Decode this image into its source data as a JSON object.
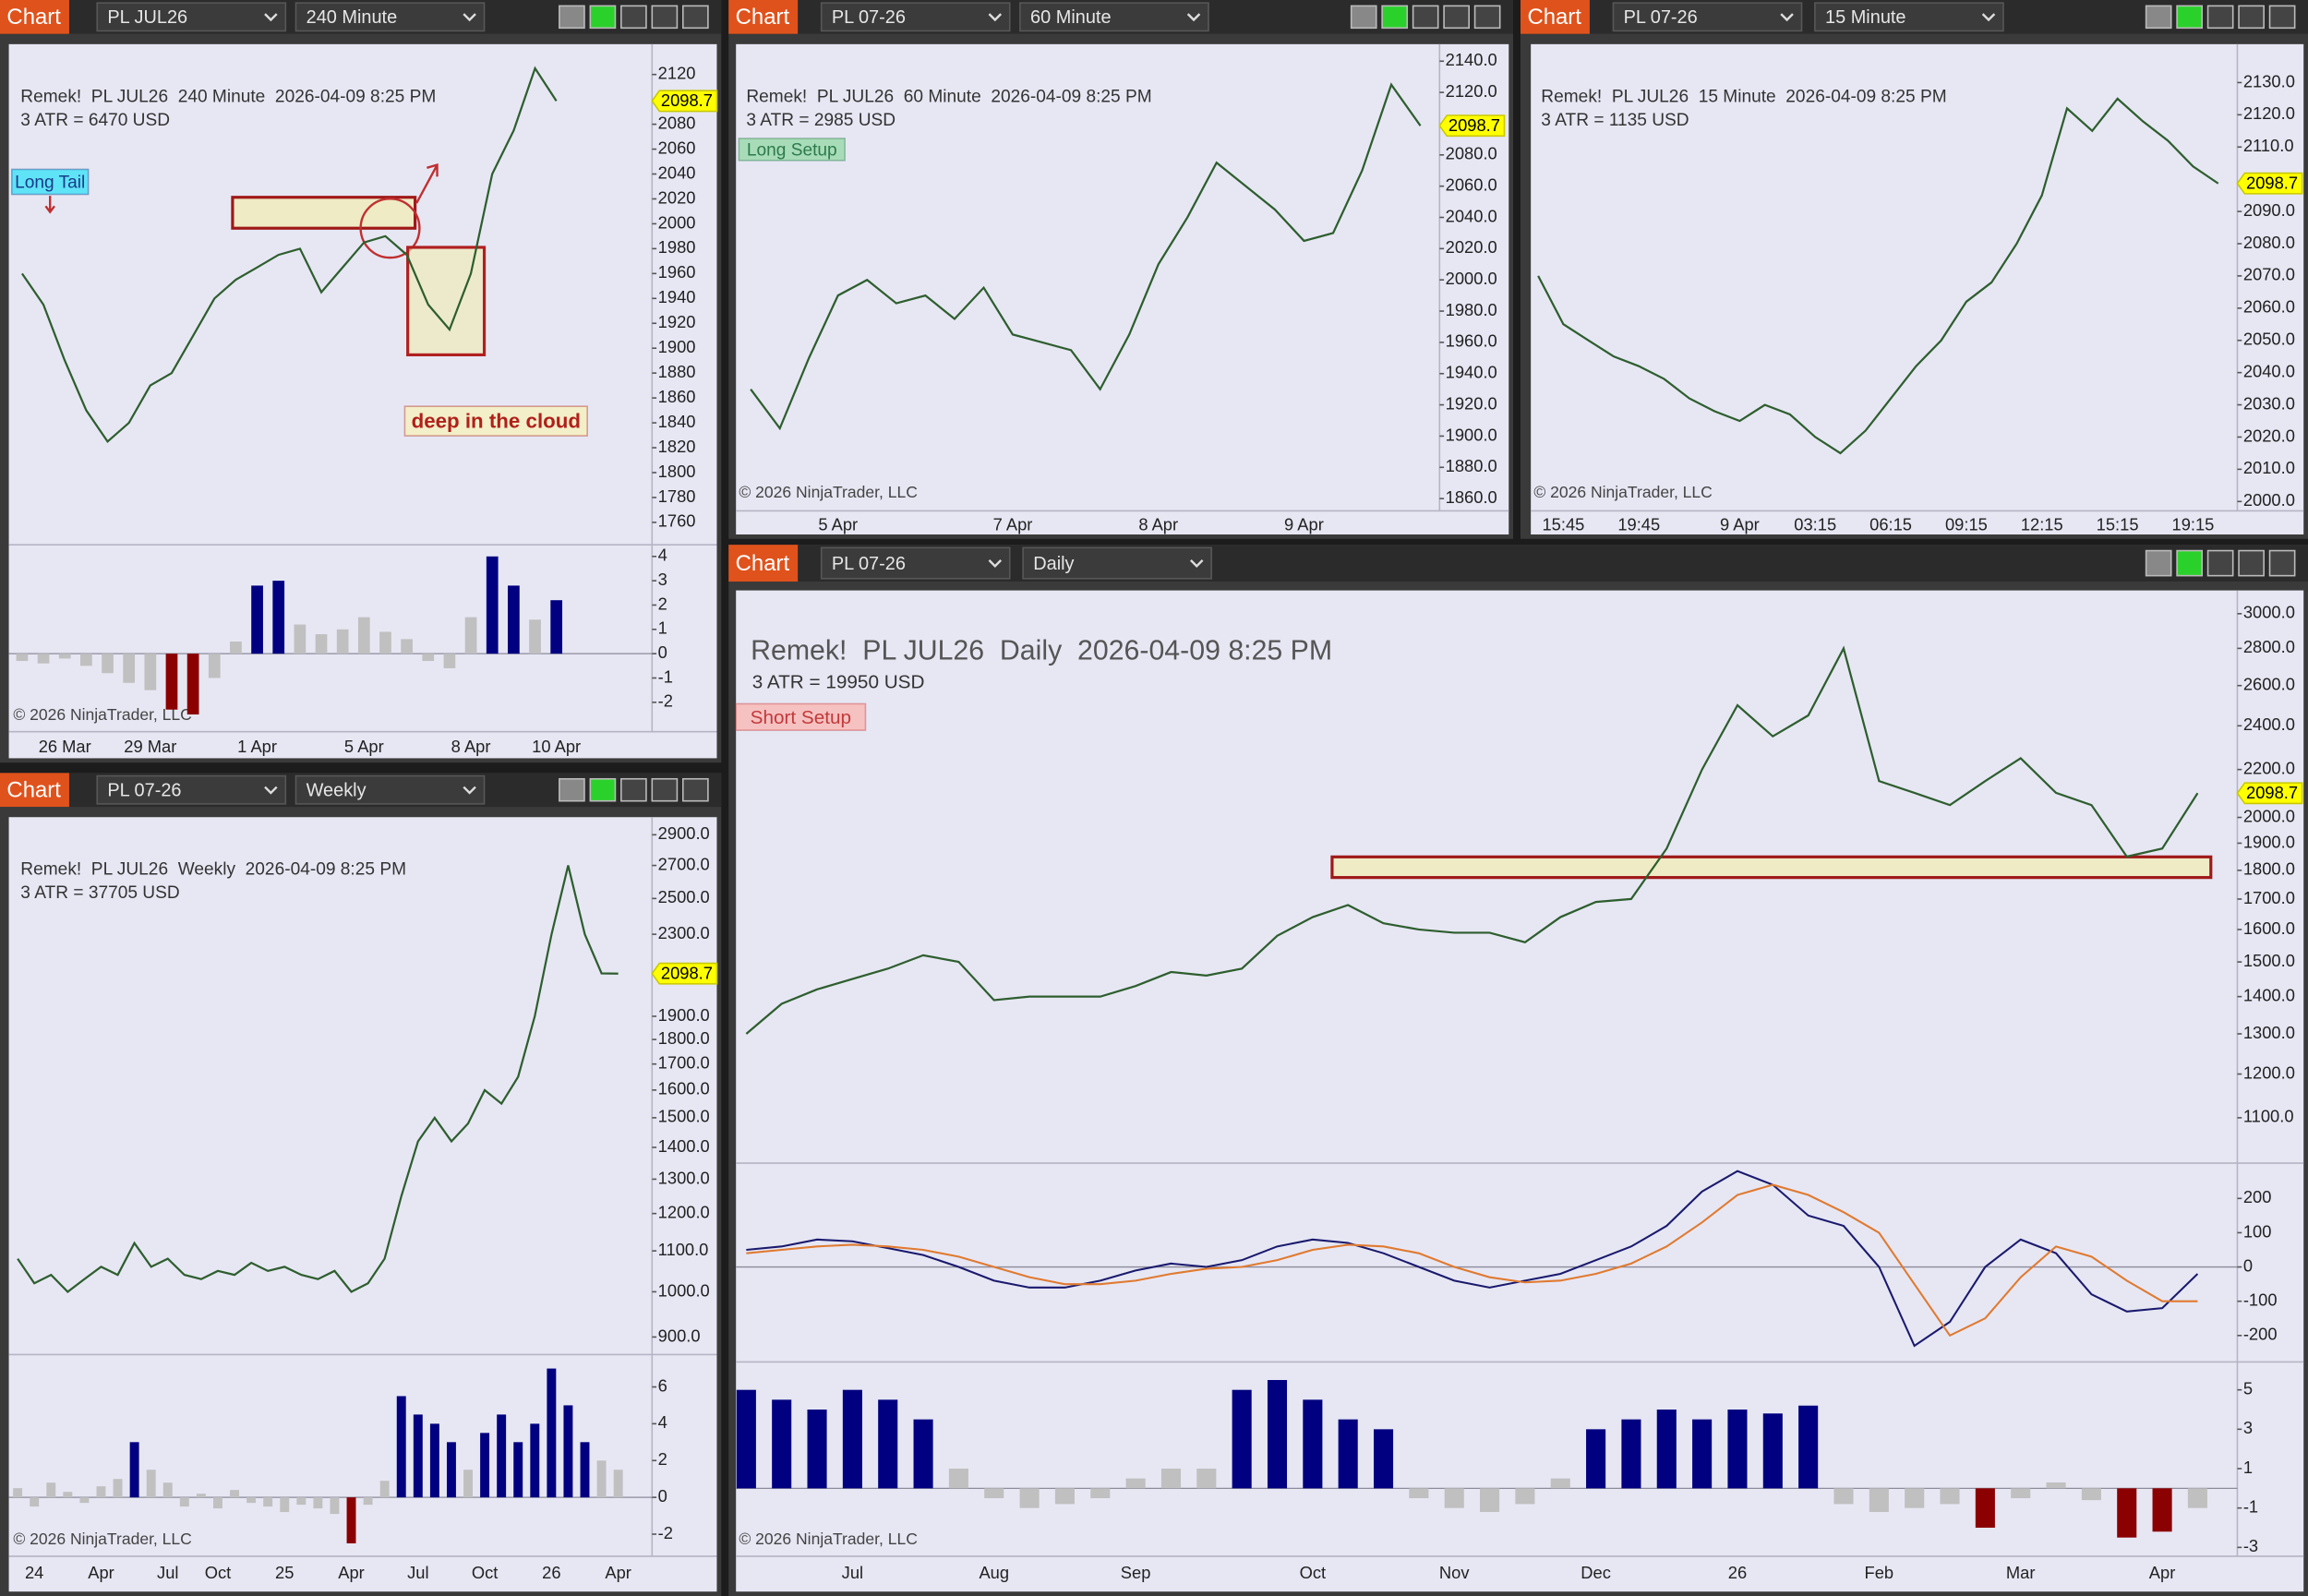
{
  "chart_data": [
    {
      "type": "line",
      "window_label": "Chart",
      "instrument": "PL JUL26",
      "timeframe": "240 Minute",
      "title": "Remek!  PL JUL26  240 Minute  2026-04-09 8:25 PM",
      "subtitle": "3 ATR = 6470 USD",
      "copyright": "© 2026 NinjaTrader, LLC",
      "annotations": [
        "Long Tail",
        "deep in the cloud"
      ],
      "categories": [
        null,
        null,
        "26 Mar",
        null,
        null,
        null,
        "29 Mar",
        null,
        null,
        null,
        null,
        "1 Apr",
        null,
        null,
        null,
        null,
        "5 Apr",
        null,
        null,
        null,
        null,
        "8 Apr",
        null,
        null,
        null,
        "10 Apr"
      ],
      "values": [
        1960,
        1935,
        1890,
        1850,
        1825,
        1840,
        1870,
        1880,
        1910,
        1940,
        1955,
        1965,
        1975,
        1980,
        1945,
        1965,
        1985,
        1990,
        1975,
        1935,
        1915,
        1960,
        2040,
        2075,
        2125,
        2098.7
      ],
      "color": "#2e5e2e",
      "ylim": [
        1742,
        2142
      ],
      "yticks": [
        1760,
        1780,
        1800,
        1820,
        1840,
        1860,
        1880,
        1900,
        1920,
        1940,
        1960,
        1980,
        2000,
        2020,
        2040,
        2060,
        2080,
        2120
      ],
      "lower_panels": [
        {
          "type": "bar",
          "values": [
            -0.3,
            -0.4,
            -0.2,
            -0.5,
            -0.8,
            -1.2,
            -1.5,
            -2.3,
            -2.5,
            -1.0,
            0.5,
            2.8,
            3.0,
            1.2,
            0.8,
            1.0,
            1.5,
            0.9,
            0.6,
            -0.3,
            -0.6,
            1.5,
            4.0,
            2.8,
            1.4,
            2.2
          ],
          "colors": [
            "silver",
            "silver",
            "silver",
            "silver",
            "silver",
            "silver",
            "silver",
            "darkred",
            "darkred",
            "silver",
            "silver",
            "navy",
            "navy",
            "silver",
            "silver",
            "silver",
            "silver",
            "silver",
            "silver",
            "silver",
            "silver",
            "silver",
            "navy",
            "navy",
            "silver",
            "navy"
          ],
          "ylim": [
            -3.09,
            4.48
          ],
          "yticks": [
            4,
            3,
            2,
            1,
            0,
            -1,
            -2
          ]
        }
      ]
    },
    {
      "type": "line",
      "window_label": "Chart",
      "instrument": "PL 07-26",
      "timeframe": "60 Minute",
      "title": "Remek!  PL JUL26  60 Minute  2026-04-09 8:25 PM",
      "subtitle": "3 ATR = 2985 USD",
      "copyright": "© 2026 NinjaTrader, LLC",
      "annotations": [
        "Long Setup"
      ],
      "categories": [
        null,
        null,
        null,
        "5 Apr",
        null,
        null,
        null,
        null,
        null,
        "7 Apr",
        null,
        null,
        null,
        null,
        "8 Apr",
        null,
        null,
        null,
        null,
        "9 Apr",
        null,
        null,
        null,
        null
      ],
      "values": [
        1930,
        1905,
        1950,
        1990,
        2000,
        1985,
        1990,
        1975,
        1995,
        1965,
        1960,
        1955,
        1930,
        1965,
        2010,
        2040,
        2075,
        2060,
        2045,
        2025,
        2030,
        2070,
        2125,
        2098.7
      ],
      "color": "#2e5e2e",
      "ylim": [
        1854,
        2149
      ],
      "yticks": [
        {
          "value": 2140,
          "label": "2140.0"
        },
        {
          "value": 2120,
          "label": "2120.0"
        },
        {
          "value": 2080,
          "label": "2080.0"
        },
        {
          "value": 2060,
          "label": "2060.0"
        },
        {
          "value": 2040,
          "label": "2040.0"
        },
        {
          "value": 2020,
          "label": "2020.0"
        },
        {
          "value": 2000,
          "label": "2000.0"
        },
        {
          "value": 1980,
          "label": "1980.0"
        },
        {
          "value": 1960,
          "label": "1960.0"
        },
        {
          "value": 1940,
          "label": "1940.0"
        },
        {
          "value": 1920,
          "label": "1920.0"
        },
        {
          "value": 1900,
          "label": "1900.0"
        },
        {
          "value": 1880,
          "label": "1880.0"
        },
        {
          "value": 1860,
          "label": "1860.0"
        }
      ]
    },
    {
      "type": "line",
      "window_label": "Chart",
      "instrument": "PL 07-26",
      "timeframe": "15 Minute",
      "title": "Remek!  PL JUL26  15 Minute  2026-04-09 8:25 PM",
      "subtitle": "3 ATR = 1135 USD",
      "copyright": "© 2026 NinjaTrader, LLC",
      "categories": [
        null,
        "15:45",
        null,
        null,
        "19:45",
        null,
        null,
        null,
        "9 Apr",
        null,
        null,
        "03:15",
        null,
        null,
        "06:15",
        null,
        null,
        "09:15",
        null,
        null,
        "12:15",
        null,
        null,
        "15:15",
        null,
        null,
        "19:15",
        null
      ],
      "values": [
        2070,
        2055,
        2050,
        2045,
        2042,
        2038,
        2032,
        2028,
        2025,
        2030,
        2027,
        2020,
        2015,
        2022,
        2032,
        2042,
        2050,
        2062,
        2068,
        2080,
        2095,
        2122,
        2115,
        2125,
        2118,
        2112,
        2104,
        2098.7
      ],
      "color": "#2e5e2e",
      "ylim": [
        1998,
        2141
      ],
      "yticks": [
        {
          "value": 2130,
          "label": "2130.0"
        },
        {
          "value": 2120,
          "label": "2120.0"
        },
        {
          "value": 2110,
          "label": "2110.0"
        },
        {
          "value": 2090,
          "label": "2090.0"
        },
        {
          "value": 2080,
          "label": "2080.0"
        },
        {
          "value": 2070,
          "label": "2070.0"
        },
        {
          "value": 2060,
          "label": "2060.0"
        },
        {
          "value": 2050,
          "label": "2050.0"
        },
        {
          "value": 2040,
          "label": "2040.0"
        },
        {
          "value": 2030,
          "label": "2030.0"
        },
        {
          "value": 2020,
          "label": "2020.0"
        },
        {
          "value": 2010,
          "label": "2010.0"
        },
        {
          "value": 2000,
          "label": "2000.0"
        }
      ]
    },
    {
      "type": "line",
      "window_label": "Chart",
      "instrument": "PL 07-26",
      "timeframe": "Weekly",
      "title": "Remek!  PL JUL26  Weekly  2026-04-09 8:25 PM",
      "subtitle": "3 ATR = 37705 USD",
      "copyright": "© 2026 NinjaTrader, LLC",
      "categories": [
        null,
        "24",
        null,
        null,
        null,
        "Apr",
        null,
        null,
        null,
        "Jul",
        null,
        null,
        "Oct",
        null,
        null,
        null,
        "25",
        null,
        null,
        null,
        "Apr",
        null,
        null,
        null,
        "Jul",
        null,
        null,
        null,
        "Oct",
        null,
        null,
        null,
        "26",
        null,
        null,
        null,
        "Apr"
      ],
      "values": [
        1080,
        1020,
        1040,
        1000,
        1030,
        1060,
        1040,
        1120,
        1060,
        1080,
        1040,
        1030,
        1050,
        1040,
        1070,
        1050,
        1060,
        1040,
        1030,
        1050,
        1000,
        1020,
        1080,
        1250,
        1420,
        1500,
        1420,
        1480,
        1600,
        1550,
        1650,
        1900,
        2300,
        2700,
        2300,
        2100,
        2098.7
      ],
      "color": "#2e5e2e",
      "log_scale": true,
      "ylim": [
        864,
        3001
      ],
      "yticks": [
        {
          "value": 2900,
          "label": "2900.0"
        },
        {
          "value": 2700,
          "label": "2700.0"
        },
        {
          "value": 2500,
          "label": "2500.0"
        },
        {
          "value": 2300,
          "label": "2300.0"
        },
        {
          "value": 1900,
          "label": "1900.0"
        },
        {
          "value": 1800,
          "label": "1800.0"
        },
        {
          "value": 1700,
          "label": "1700.0"
        },
        {
          "value": 1600,
          "label": "1600.0"
        },
        {
          "value": 1500,
          "label": "1500.0"
        },
        {
          "value": 1400,
          "label": "1400.0"
        },
        {
          "value": 1300,
          "label": "1300.0"
        },
        {
          "value": 1200,
          "label": "1200.0"
        },
        {
          "value": 1100,
          "label": "1100.0"
        },
        {
          "value": 1000,
          "label": "1000.0"
        },
        {
          "value": 900,
          "label": "900.0"
        }
      ],
      "lower_panels": [
        {
          "type": "bar",
          "values": [
            0.5,
            -0.5,
            0.8,
            0.3,
            -0.3,
            0.6,
            1.0,
            3.0,
            1.5,
            0.8,
            -0.5,
            0.2,
            -0.6,
            0.4,
            -0.3,
            -0.5,
            -0.8,
            -0.4,
            -0.6,
            -0.9,
            -2.5,
            -0.4,
            0.9,
            5.5,
            4.5,
            4.0,
            3.0,
            1.5,
            3.5,
            4.5,
            3.0,
            4.0,
            7.0,
            5.0,
            3.0,
            2.0,
            1.5
          ],
          "colors": [
            "silver",
            "silver",
            "silver",
            "silver",
            "silver",
            "silver",
            "silver",
            "navy",
            "silver",
            "silver",
            "silver",
            "silver",
            "silver",
            "silver",
            "silver",
            "silver",
            "silver",
            "silver",
            "silver",
            "silver",
            "darkred",
            "silver",
            "silver",
            "navy",
            "navy",
            "navy",
            "navy",
            "silver",
            "navy",
            "navy",
            "navy",
            "navy",
            "navy",
            "navy",
            "navy",
            "silver",
            "silver"
          ],
          "ylim": [
            -3.04,
            7.76
          ],
          "yticks": [
            6,
            4,
            2,
            0,
            -2
          ]
        }
      ]
    },
    {
      "type": "line",
      "window_label": "Chart",
      "instrument": "PL 07-26",
      "timeframe": "Daily",
      "title": "Remek!  PL JUL26  Daily  2026-04-09 8:25 PM",
      "subtitle": "3 ATR = 19950 USD",
      "copyright": "© 2026 NinjaTrader, LLC",
      "annotations": [
        "Short Setup"
      ],
      "categories": [
        null,
        null,
        null,
        "Jul",
        null,
        null,
        null,
        "Aug",
        null,
        null,
        null,
        "Sep",
        null,
        null,
        null,
        null,
        "Oct",
        null,
        null,
        null,
        "Nov",
        null,
        null,
        null,
        "Dec",
        null,
        null,
        null,
        "26",
        null,
        null,
        null,
        "Feb",
        null,
        null,
        null,
        "Mar",
        null,
        null,
        null,
        "Apr",
        null
      ],
      "values": [
        1300,
        1380,
        1420,
        1450,
        1480,
        1520,
        1500,
        1390,
        1400,
        1400,
        1400,
        1430,
        1470,
        1460,
        1480,
        1580,
        1640,
        1680,
        1620,
        1600,
        1590,
        1590,
        1560,
        1640,
        1690,
        1700,
        1880,
        2200,
        2500,
        2350,
        2450,
        2800,
        2150,
        2100,
        2050,
        2150,
        2250,
        2100,
        2050,
        1850,
        1880,
        2098.7
      ],
      "color": "#2e5e2e",
      "log_scale": true,
      "ylim": [
        1005,
        3124
      ],
      "yticks": [
        {
          "value": 3000,
          "label": "3000.0"
        },
        {
          "value": 2800,
          "label": "2800.0"
        },
        {
          "value": 2600,
          "label": "2600.0"
        },
        {
          "value": 2400,
          "label": "2400.0"
        },
        {
          "value": 2200,
          "label": "2200.0"
        },
        {
          "value": 2000,
          "label": "2000.0"
        },
        {
          "value": 1900,
          "label": "1900.0"
        },
        {
          "value": 1800,
          "label": "1800.0"
        },
        {
          "value": 1700,
          "label": "1700.0"
        },
        {
          "value": 1600,
          "label": "1600.0"
        },
        {
          "value": 1500,
          "label": "1500.0"
        },
        {
          "value": 1400,
          "label": "1400.0"
        },
        {
          "value": 1300,
          "label": "1300.0"
        },
        {
          "value": 1200,
          "label": "1200.0"
        },
        {
          "value": 1100,
          "label": "1100.0"
        }
      ],
      "lower_panels": [
        {
          "type": "line",
          "ylim": [
            -277,
            303
          ],
          "yticks": [
            200,
            100,
            0,
            -100,
            -200
          ],
          "series": [
            {
              "color": "#1a1a6e",
              "values": [
                50,
                60,
                80,
                75,
                55,
                35,
                0,
                -40,
                -60,
                -60,
                -40,
                -10,
                10,
                0,
                20,
                60,
                80,
                70,
                40,
                0,
                -40,
                -60,
                -40,
                -20,
                20,
                60,
                120,
                220,
                280,
                240,
                150,
                120,
                0,
                -230,
                -160,
                0,
                80,
                40,
                -80,
                -130,
                -120,
                -20
              ]
            },
            {
              "color": "#e07a30",
              "values": [
                40,
                50,
                60,
                65,
                60,
                50,
                30,
                0,
                -30,
                -50,
                -50,
                -40,
                -20,
                -5,
                0,
                20,
                50,
                65,
                60,
                40,
                0,
                -30,
                -45,
                -40,
                -20,
                10,
                60,
                130,
                210,
                240,
                210,
                160,
                100,
                -50,
                -200,
                -150,
                -30,
                60,
                30,
                -40,
                -100,
                -100
              ]
            }
          ]
        },
        {
          "type": "bar",
          "ylim": [
            -3.3,
            6.42
          ],
          "yticks": [
            5,
            3,
            1,
            -1,
            -3
          ],
          "values": [
            5,
            4.5,
            4,
            5,
            4.5,
            3.5,
            1,
            -0.5,
            -1,
            -0.8,
            -0.5,
            0.5,
            1,
            1,
            5,
            5.5,
            4.5,
            3.5,
            3,
            -0.5,
            -1,
            -1.2,
            -0.8,
            0.5,
            3,
            3.5,
            4,
            3.5,
            4,
            3.8,
            4.2,
            -0.8,
            -1.2,
            -1,
            -0.8,
            -2,
            -0.5,
            0.3,
            -0.6,
            -2.5,
            -2.2,
            -1
          ],
          "colors": [
            "navy",
            "navy",
            "navy",
            "navy",
            "navy",
            "navy",
            "silver",
            "silver",
            "silver",
            "silver",
            "silver",
            "silver",
            "silver",
            "silver",
            "navy",
            "navy",
            "navy",
            "navy",
            "navy",
            "silver",
            "silver",
            "silver",
            "silver",
            "silver",
            "navy",
            "navy",
            "navy",
            "navy",
            "navy",
            "navy",
            "navy",
            "silver",
            "silver",
            "silver",
            "silver",
            "darkred",
            "silver",
            "silver",
            "silver",
            "darkred",
            "darkred",
            "silver"
          ]
        }
      ]
    }
  ]
}
